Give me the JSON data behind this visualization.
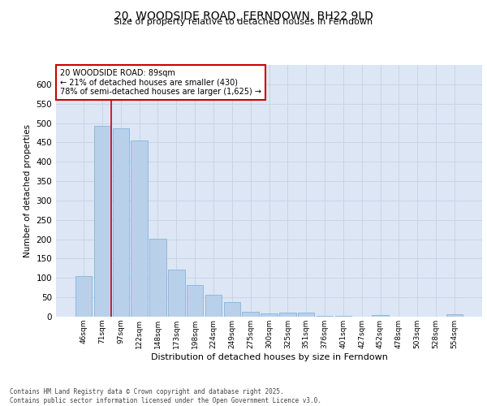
{
  "title_line1": "20, WOODSIDE ROAD, FERNDOWN, BH22 9LD",
  "title_line2": "Size of property relative to detached houses in Ferndown",
  "xlabel": "Distribution of detached houses by size in Ferndown",
  "ylabel": "Number of detached properties",
  "categories": [
    "46sqm",
    "71sqm",
    "97sqm",
    "122sqm",
    "148sqm",
    "173sqm",
    "198sqm",
    "224sqm",
    "249sqm",
    "275sqm",
    "300sqm",
    "325sqm",
    "351sqm",
    "376sqm",
    "401sqm",
    "427sqm",
    "452sqm",
    "478sqm",
    "503sqm",
    "528sqm",
    "554sqm"
  ],
  "values": [
    105,
    493,
    487,
    455,
    202,
    122,
    82,
    57,
    38,
    13,
    8,
    10,
    10,
    2,
    2,
    0,
    5,
    0,
    0,
    0,
    6
  ],
  "bar_color": "#b8d0ea",
  "bar_edge_color": "#7aadd4",
  "grid_color": "#c8d4e8",
  "background_color": "#dce6f5",
  "annotation_text": "20 WOODSIDE ROAD: 89sqm\n← 21% of detached houses are smaller (430)\n78% of semi-detached houses are larger (1,625) →",
  "vline_x_index": 1.5,
  "annotation_box_color": "#ffffff",
  "annotation_box_edge": "#cc0000",
  "vline_color": "#cc0000",
  "footer_text": "Contains HM Land Registry data © Crown copyright and database right 2025.\nContains public sector information licensed under the Open Government Licence v3.0.",
  "ylim": [
    0,
    650
  ],
  "yticks": [
    0,
    50,
    100,
    150,
    200,
    250,
    300,
    350,
    400,
    450,
    500,
    550,
    600
  ]
}
